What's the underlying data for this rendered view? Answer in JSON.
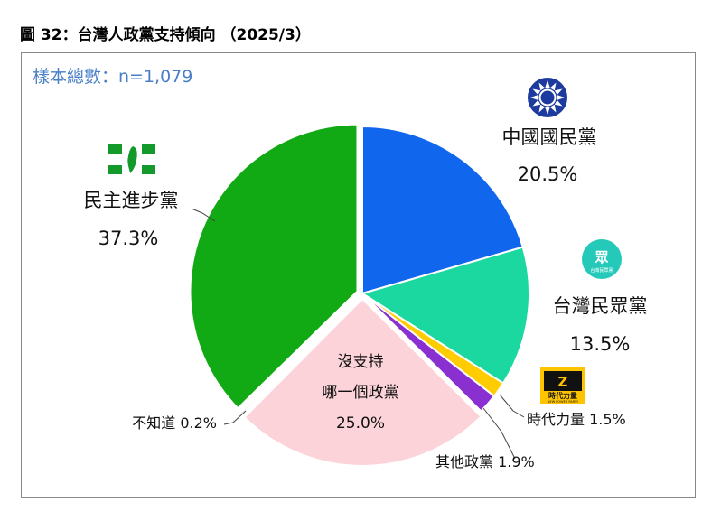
{
  "figure": {
    "title": "圖 32：台灣人政黨支持傾向 （2025/3）",
    "sample_label": "樣本總數：n=1,079"
  },
  "chart_data": {
    "type": "pie",
    "start_angle_deg": 0,
    "direction": "clockwise",
    "slices": [
      {
        "id": "kmt",
        "label": "中國國民黨",
        "value": 20.5,
        "value_label": "20.5%",
        "color": "#1166ee",
        "explode": 0
      },
      {
        "id": "tpp",
        "label": "台灣民眾黨",
        "value": 13.5,
        "value_label": "13.5%",
        "color": "#1ad8a0",
        "explode": 0
      },
      {
        "id": "npp",
        "label": "時代力量",
        "value": 1.5,
        "value_label": "1.5%",
        "color": "#ffcc00",
        "explode": 0
      },
      {
        "id": "other",
        "label": "其他政黨",
        "value": 1.9,
        "value_label": "1.9%",
        "color": "#8a2fd0",
        "explode": 0
      },
      {
        "id": "none",
        "label": "沒支持哪一個政黨",
        "label_lines": [
          "沒支持",
          "哪一個政黨"
        ],
        "value": 25.0,
        "value_label": "25.0%",
        "color": "#fcd3d9",
        "explode": 1
      },
      {
        "id": "unknown",
        "label": "不知道",
        "value": 0.2,
        "value_label": "0.2%",
        "color": "#cccccc",
        "explode": 1
      },
      {
        "id": "dpp",
        "label": "民主進步黨",
        "value": 37.3,
        "value_label": "37.3%",
        "color": "#12aa14",
        "explode": 1
      }
    ],
    "logos": {
      "kmt": "kmt-sun-emblem-icon",
      "tpp": "tpp-logo-icon",
      "tpp_logo_text": "眾",
      "tpp_logo_sub": "台灣民眾黨",
      "npp": "npp-logo-icon",
      "npp_logo_text": "時代力量",
      "npp_logo_sub": "NEW POWER PARTY",
      "dpp": "dpp-logo-icon"
    }
  }
}
